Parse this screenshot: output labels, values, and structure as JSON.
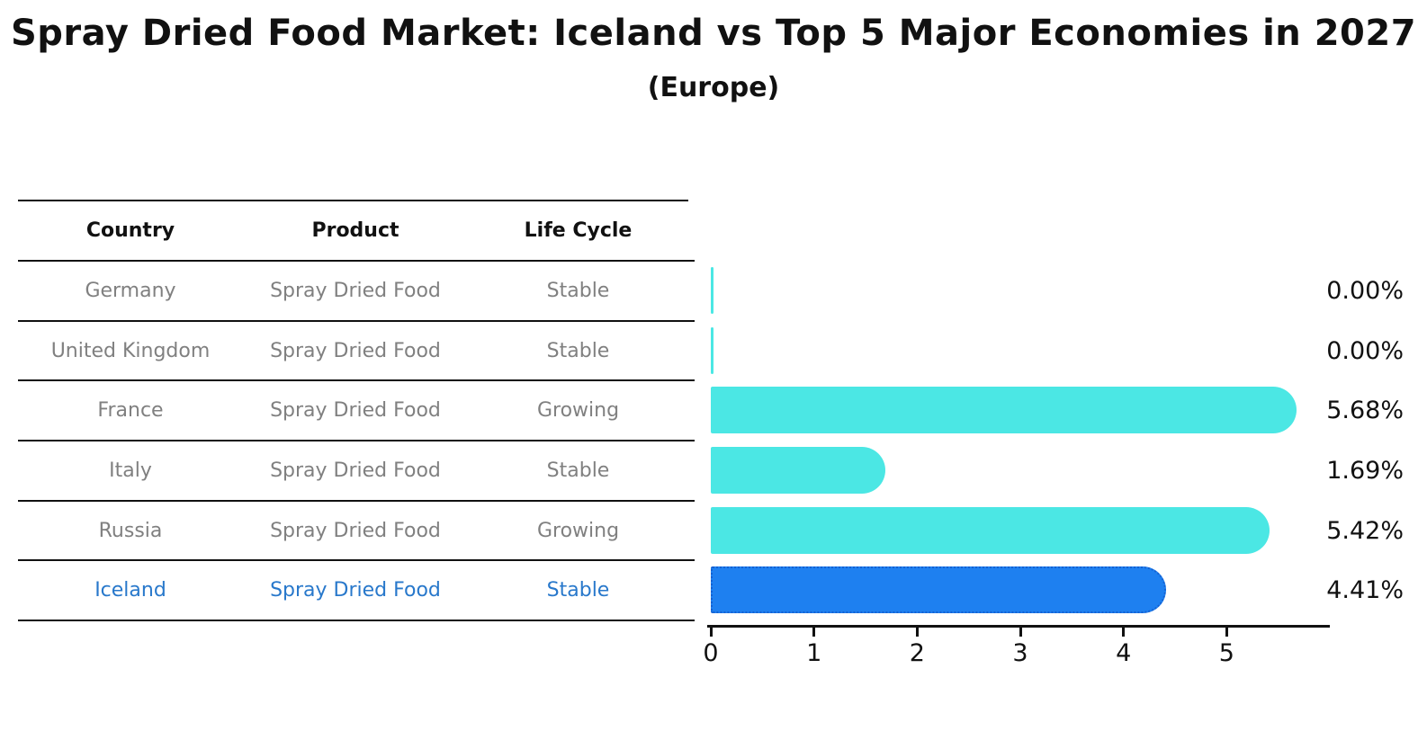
{
  "title": "Spray Dried Food Market: Iceland vs Top 5 Major Economies in 2027",
  "subtitle": "(Europe)",
  "table": {
    "headers": [
      "Country",
      "Product",
      "Life Cycle"
    ],
    "rows": [
      {
        "country": "Germany",
        "product": "Spray Dried Food",
        "life_cycle": "Stable",
        "highlighted": false
      },
      {
        "country": "United Kingdom",
        "product": "Spray Dried Food",
        "life_cycle": "Stable",
        "highlighted": false
      },
      {
        "country": "France",
        "product": "Spray Dried Food",
        "life_cycle": "Growing",
        "highlighted": false
      },
      {
        "country": "Italy",
        "product": "Spray Dried Food",
        "life_cycle": "Stable",
        "highlighted": false
      },
      {
        "country": "Russia",
        "product": "Spray Dried Food",
        "life_cycle": "Growing",
        "highlighted": false
      },
      {
        "country": "Iceland",
        "product": "Spray Dried Food",
        "life_cycle": "Stable",
        "highlighted": true
      }
    ]
  },
  "chart_data": {
    "type": "bar",
    "orientation": "horizontal",
    "title": "Spray Dried Food Market: Iceland vs Top 5 Major Economies in 2027 (Europe)",
    "categories": [
      "Germany",
      "United Kingdom",
      "France",
      "Italy",
      "Russia",
      "Iceland"
    ],
    "values": [
      0.0,
      0.0,
      5.68,
      1.69,
      5.42,
      4.41
    ],
    "value_labels": [
      "0.00%",
      "0.00%",
      "5.68%",
      "1.69%",
      "5.42%",
      "4.41%"
    ],
    "xlabel": "",
    "ylabel": "",
    "xlim": [
      0,
      6
    ],
    "x_ticks": [
      "0",
      "1",
      "2",
      "3",
      "4",
      "5"
    ],
    "grid": false,
    "legend": false,
    "highlight_index": 5,
    "colors": {
      "bar": "#4BE7E4",
      "highlight_bar": "#1E80F0",
      "highlight_border": "#1461D2",
      "axis": "#111111",
      "value_label": "#111111",
      "table_text": "#808080",
      "table_header_text": "#111111",
      "highlight_text": "#2878CB"
    }
  }
}
